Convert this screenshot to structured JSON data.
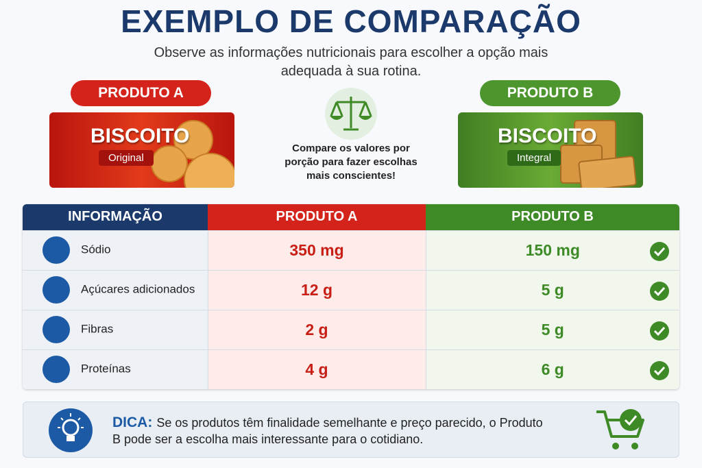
{
  "header": {
    "title": "EXEMPLO DE COMPARAÇÃO",
    "subtitle": "Observe as informações nutricionais para escolher a opção mais adequada à sua rotina."
  },
  "products": [
    {
      "label": "PRODUTO A",
      "name": "BISCOITO",
      "variant": "Original"
    },
    {
      "label": "PRODUTO B",
      "name": "BISCOITO",
      "variant": "Integral"
    }
  ],
  "note": "Compare os valores por porção para fazer escolhas mais conscientes!",
  "table": {
    "header": [
      "INFORMAÇÃO",
      "PRODUTO A",
      "PRODUTO B"
    ],
    "rows": [
      [
        "Sódio",
        "350 mg",
        "150 mg"
      ],
      [
        "Açúcares adicionados",
        "12 g",
        "5 g"
      ],
      [
        "Fibras",
        "2 g",
        "5 g"
      ],
      [
        "Proteínas",
        "4 g",
        "6 g"
      ]
    ]
  },
  "tip": {
    "label": "DICA:",
    "text": "Se os produtos têm finalidade semelhante e preço parecido, o Produto B pode ser a escolha mais interessante para o cotidiano."
  }
}
